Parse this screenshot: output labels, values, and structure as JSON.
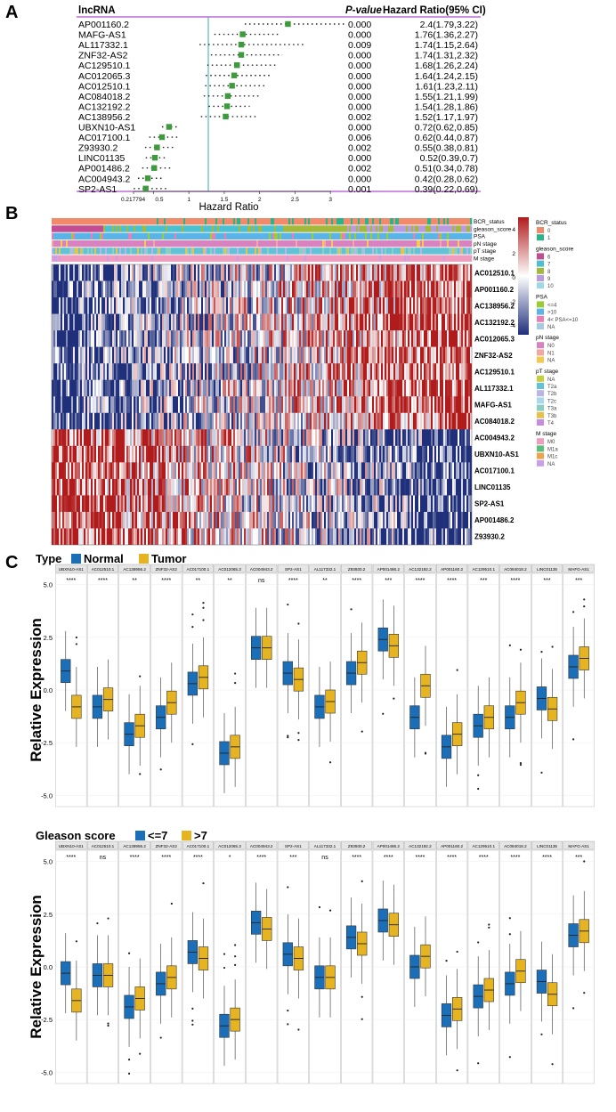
{
  "panel_labels": {
    "a": "A",
    "b": "B",
    "c": "C"
  },
  "chart_data": [
    {
      "type": "forest",
      "panel": "A",
      "col_gene": "lncRNA",
      "col_p": "P-value",
      "col_hr": "Hazard Ratio(95% CI)",
      "xlabel": "Hazard Ratio",
      "x_ticks": [
        "0.217794",
        "0.5",
        "1",
        "1.5",
        "2",
        "2.5",
        "3"
      ],
      "x_tick_values": [
        0.2178,
        0.5,
        1,
        1.5,
        2,
        2.5,
        3
      ],
      "xlim": [
        0.2178,
        3.3
      ],
      "genes": [
        "AP001160.2",
        "MAFG-AS1",
        "AL117332.1",
        "ZNF32-AS2",
        "AC129510.1",
        "AC012065.3",
        "AC012510.1",
        "AC084018.2",
        "AC132192.2",
        "AC138956.2",
        "UBXN10-AS1",
        "AC017100.1",
        "Z93930.2",
        "LINC01135",
        "AP001486.2",
        "AC004943.2",
        "SP2-AS1"
      ],
      "pvalues": [
        "0.000",
        "0.000",
        "0.009",
        "0.000",
        "0.000",
        "0.000",
        "0.000",
        "0.000",
        "0.000",
        "0.002",
        "0.000",
        "0.006",
        "0.002",
        "0.000",
        "0.002",
        "0.000",
        "0.001"
      ],
      "hr_text": [
        "2.4(1.79,3.22)",
        "1.76(1.36,2.27)",
        "1.74(1.15,2.64)",
        "1.74(1.31,2.32)",
        "1.68(1.26,2.24)",
        "1.64(1.24,2.15)",
        "1.61(1.23,2.11)",
        "1.55(1.21,1.99)",
        "1.54(1.28,1.86)",
        "1.52(1.17,1.97)",
        "0.72(0.62,0.85)",
        "0.62(0.44,0.87)",
        "0.55(0.38,0.81)",
        "0.52(0.39,0.7)",
        "0.51(0.34,0.78)",
        "0.42(0.28,0.62)",
        "0.39(0.22,0.69)"
      ],
      "hr": [
        2.4,
        1.76,
        1.74,
        1.74,
        1.68,
        1.64,
        1.61,
        1.55,
        1.54,
        1.52,
        0.72,
        0.62,
        0.55,
        0.52,
        0.51,
        0.42,
        0.39
      ],
      "lower": [
        1.79,
        1.36,
        1.15,
        1.31,
        1.26,
        1.24,
        1.23,
        1.21,
        1.28,
        1.17,
        0.62,
        0.44,
        0.38,
        0.39,
        0.34,
        0.28,
        0.22
      ],
      "upper": [
        3.22,
        2.27,
        2.64,
        2.32,
        2.24,
        2.15,
        2.11,
        1.99,
        1.86,
        1.97,
        0.85,
        0.87,
        0.81,
        0.7,
        0.78,
        0.62,
        0.69
      ]
    },
    {
      "type": "heatmap",
      "panel": "B",
      "rows": [
        "AC012510.1",
        "AP001160.2",
        "AC138956.2",
        "AC132192.2",
        "AC012065.3",
        "ZNF32-AS2",
        "AC129510.1",
        "AL117332.1",
        "MAFG-AS1",
        "AC084018.2",
        "AC004943.2",
        "UBXN10-AS1",
        "AC017100.1",
        "LINC01135",
        "SP2-AS1",
        "AP001486.2",
        "Z93930.2"
      ],
      "annotation_tracks": [
        "BCR_status",
        "gleason_score",
        "PSA",
        "pN stage",
        "pT stage",
        "M stage"
      ],
      "color_scale": {
        "ticks": [
          "4",
          "2",
          "0",
          "-2",
          "-4"
        ],
        "low": "#1f2f7a",
        "mid": "#ffffff",
        "high": "#b01c1c"
      },
      "legend": [
        {
          "title": "BCR_status",
          "items": [
            {
              "label": "0",
              "color": "#f08a6a"
            },
            {
              "label": "1",
              "color": "#2bb38a"
            }
          ]
        },
        {
          "title": "gleason_score",
          "items": [
            {
              "label": "6",
              "color": "#c24d92"
            },
            {
              "label": "7",
              "color": "#4cc0d0"
            },
            {
              "label": "8",
              "color": "#a3b93b"
            },
            {
              "label": "9",
              "color": "#b99be0"
            },
            {
              "label": "10",
              "color": "#9ed8e8"
            }
          ]
        },
        {
          "title": "PSA",
          "items": [
            {
              "label": "<=4",
              "color": "#9acd32"
            },
            {
              "label": ">10",
              "color": "#5ab4e8"
            },
            {
              "label": "4< PSA<=10",
              "color": "#e97fb7"
            },
            {
              "label": "NA",
              "color": "#a6cbe0"
            }
          ]
        },
        {
          "title": "pN stage",
          "items": [
            {
              "label": "N0",
              "color": "#d883c0"
            },
            {
              "label": "N1",
              "color": "#f4a6a0"
            },
            {
              "label": "NA",
              "color": "#f3c94e"
            }
          ]
        },
        {
          "title": "pT stage",
          "items": [
            {
              "label": "NA",
              "color": "#c6cf3d"
            },
            {
              "label": "T2a",
              "color": "#63c3d6"
            },
            {
              "label": "T2b",
              "color": "#b9b5e6"
            },
            {
              "label": "T2c",
              "color": "#a8d8ea"
            },
            {
              "label": "T3a",
              "color": "#8ccfc0"
            },
            {
              "label": "T3b",
              "color": "#e7c24a"
            },
            {
              "label": "T4",
              "color": "#c88be0"
            }
          ]
        },
        {
          "title": "M stage",
          "items": [
            {
              "label": "M0",
              "color": "#f09cbf"
            },
            {
              "label": "M1a",
              "color": "#58c07a"
            },
            {
              "label": "M1c",
              "color": "#f0a24a"
            },
            {
              "label": "NA",
              "color": "#c9a0e6"
            }
          ]
        }
      ]
    },
    {
      "type": "boxplot",
      "panel": "C-top",
      "legend_title": "Type",
      "groups": [
        "Normal",
        "Tumor"
      ],
      "group_colors": [
        "#1a6fb8",
        "#e6b421"
      ],
      "ylabel": "Relative Expression",
      "ylim": [
        -5.2,
        5.2
      ],
      "y_ticks": [
        "5.0",
        "2.5",
        "0.0",
        "-2.5",
        "-5.0"
      ],
      "y_tick_values": [
        5,
        2.5,
        0,
        -2.5,
        -5
      ],
      "genes": [
        "UBXN10-AS1",
        "AC012510.1",
        "AC138956.2",
        "ZNF32-AS2",
        "AC017100.1",
        "AC012065.3",
        "AC004943.2",
        "SP2-AS1",
        "AL117332.1",
        "Z93930.2",
        "AP001486.2",
        "AC132192.2",
        "AP001160.2",
        "AC129510.1",
        "AC084018.2",
        "LINC01135",
        "MAFG-AS1"
      ],
      "significance": [
        "****",
        "****",
        "**",
        "****",
        "**",
        "**",
        "ns",
        "****",
        "**",
        "****",
        "***",
        "****",
        "****",
        "***",
        "****",
        "***",
        "***"
      ],
      "medians": [
        [
          0.9,
          -0.8
        ],
        [
          -0.8,
          -0.45
        ],
        [
          -2.1,
          -1.7
        ],
        [
          -1.3,
          -0.6
        ],
        [
          0.3,
          0.6
        ],
        [
          -3.0,
          -2.7
        ],
        [
          2.0,
          2.0
        ],
        [
          0.8,
          0.5
        ],
        [
          -0.8,
          -0.55
        ],
        [
          0.8,
          1.3
        ],
        [
          2.4,
          2.1
        ],
        [
          -1.3,
          0.2
        ],
        [
          -2.7,
          -2.1
        ],
        [
          -1.7,
          -1.3
        ],
        [
          -1.3,
          -0.6
        ],
        [
          -0.4,
          -0.9
        ],
        [
          1.1,
          1.5
        ]
      ]
    },
    {
      "type": "boxplot",
      "panel": "C-bottom",
      "legend_title": "Gleason score",
      "groups": [
        "<=7",
        ">7"
      ],
      "group_colors": [
        "#1a6fb8",
        "#e6b421"
      ],
      "ylabel": "Relative Expression",
      "ylim": [
        -5.2,
        5.2
      ],
      "y_ticks": [
        "5.0",
        "2.5",
        "0.0",
        "-2.5",
        "-5.0"
      ],
      "y_tick_values": [
        5,
        2.5,
        0,
        -2.5,
        -5
      ],
      "genes": [
        "UBXN10-AS1",
        "AC012510.1",
        "AC138956.2",
        "ZNF32-AS2",
        "AC017100.1",
        "AC012065.3",
        "AC004943.2",
        "SP2-AS1",
        "AL117332.1",
        "Z93930.2",
        "AP001486.2",
        "AC132192.2",
        "AP001160.2",
        "AC129510.1",
        "AC084018.2",
        "LINC01135",
        "MAFG-AS1"
      ],
      "significance": [
        "****",
        "ns",
        "****",
        "****",
        "****",
        "*",
        "****",
        "***",
        "ns",
        "****",
        "****",
        "****",
        "****",
        "****",
        "****",
        "****",
        "***"
      ],
      "medians": [
        [
          -0.3,
          -1.6
        ],
        [
          -0.4,
          -0.4
        ],
        [
          -1.9,
          -1.5
        ],
        [
          -0.8,
          -0.5
        ],
        [
          0.7,
          0.4
        ],
        [
          -2.8,
          -2.5
        ],
        [
          2.1,
          1.8
        ],
        [
          0.6,
          0.4
        ],
        [
          -0.5,
          -0.5
        ],
        [
          1.4,
          1.1
        ],
        [
          2.2,
          2.0
        ],
        [
          0.0,
          0.5
        ],
        [
          -2.3,
          -2.0
        ],
        [
          -1.4,
          -1.1
        ],
        [
          -0.8,
          -0.2
        ],
        [
          -0.7,
          -1.3
        ],
        [
          1.5,
          1.7
        ]
      ]
    }
  ]
}
